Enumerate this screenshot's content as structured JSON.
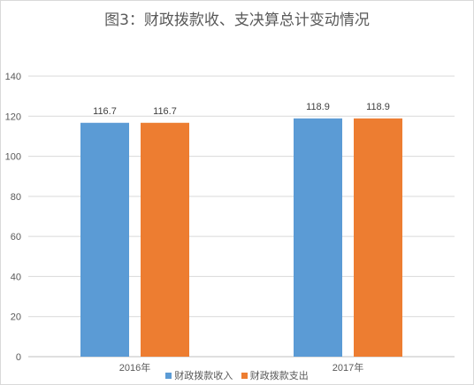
{
  "chart_data": {
    "type": "bar",
    "title": "图3：财政拨款收、支决算总计变动情况",
    "categories": [
      "2016年",
      "2017年"
    ],
    "series": [
      {
        "name": "财政拨款收入",
        "values": [
          116.7,
          118.9
        ],
        "color": "#5b9bd5"
      },
      {
        "name": "财政拨款支出",
        "values": [
          116.7,
          118.9
        ],
        "color": "#ed7d31"
      }
    ],
    "ylim": [
      0,
      140
    ],
    "yticks": [
      0,
      20,
      40,
      60,
      80,
      100,
      120,
      140
    ],
    "grid": true,
    "legend": "bottom"
  }
}
